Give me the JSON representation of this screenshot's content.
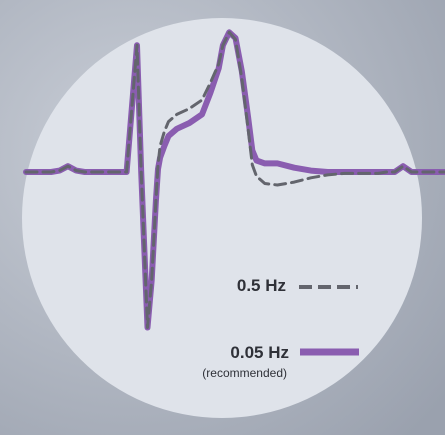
{
  "colors": {
    "backdrop": "#b3b9c4",
    "disc": "#dfe3ea",
    "filter_05": "#63656d",
    "filter_005": "#8a5db0"
  },
  "chart_data": {
    "type": "line",
    "title": "",
    "xlabel": "",
    "ylabel": "",
    "grid": false,
    "axes_visible": false,
    "legend_position": "bottom-right",
    "x_range": [
      0,
      100
    ],
    "y_range": [
      -115,
      105
    ],
    "series": [
      {
        "name": "0.5 Hz",
        "style": "dashed",
        "color": "#63656d",
        "x": [
          0,
          6,
          8,
          10,
          12,
          14,
          20,
          24,
          26.5,
          27.5,
          29,
          30,
          31,
          31.5,
          32,
          33,
          34,
          36,
          39,
          42,
          44,
          46,
          47,
          48.5,
          50,
          51.5,
          53,
          54,
          55,
          57,
          60,
          64,
          68,
          72,
          76,
          80,
          84,
          86,
          88,
          90,
          92,
          94,
          96,
          100
        ],
        "y": [
          0,
          0,
          1,
          4,
          1,
          0,
          0,
          0,
          88,
          0,
          -108,
          -75,
          -20,
          5,
          18,
          28,
          35,
          40,
          44,
          50,
          62,
          75,
          88,
          97,
          92,
          65,
          30,
          5,
          -3,
          -8,
          -9,
          -7,
          -4,
          -2,
          -1,
          -1,
          -1,
          0,
          0,
          4,
          0,
          0,
          0,
          0
        ]
      },
      {
        "name": "0.05 Hz",
        "annotation": "(recommended)",
        "style": "solid",
        "color": "#8a5db0",
        "x": [
          0,
          6,
          8,
          10,
          12,
          14,
          20,
          24,
          26.5,
          27.5,
          29,
          30,
          31,
          31.5,
          32,
          33,
          34,
          36,
          39,
          42,
          44,
          46,
          47,
          48.5,
          50,
          51.5,
          53,
          54,
          55,
          57,
          60,
          64,
          68,
          72,
          76,
          80,
          84,
          86,
          88,
          90,
          92,
          94,
          96,
          100
        ],
        "y": [
          0,
          0,
          1,
          4,
          1,
          0,
          0,
          0,
          88,
          0,
          -108,
          -75,
          -20,
          2,
          10,
          18,
          25,
          30,
          34,
          40,
          55,
          72,
          88,
          97,
          93,
          70,
          38,
          15,
          8,
          6,
          6,
          3,
          1,
          0,
          0,
          0,
          0,
          0,
          0,
          4,
          0,
          0,
          0,
          0
        ]
      }
    ]
  }
}
